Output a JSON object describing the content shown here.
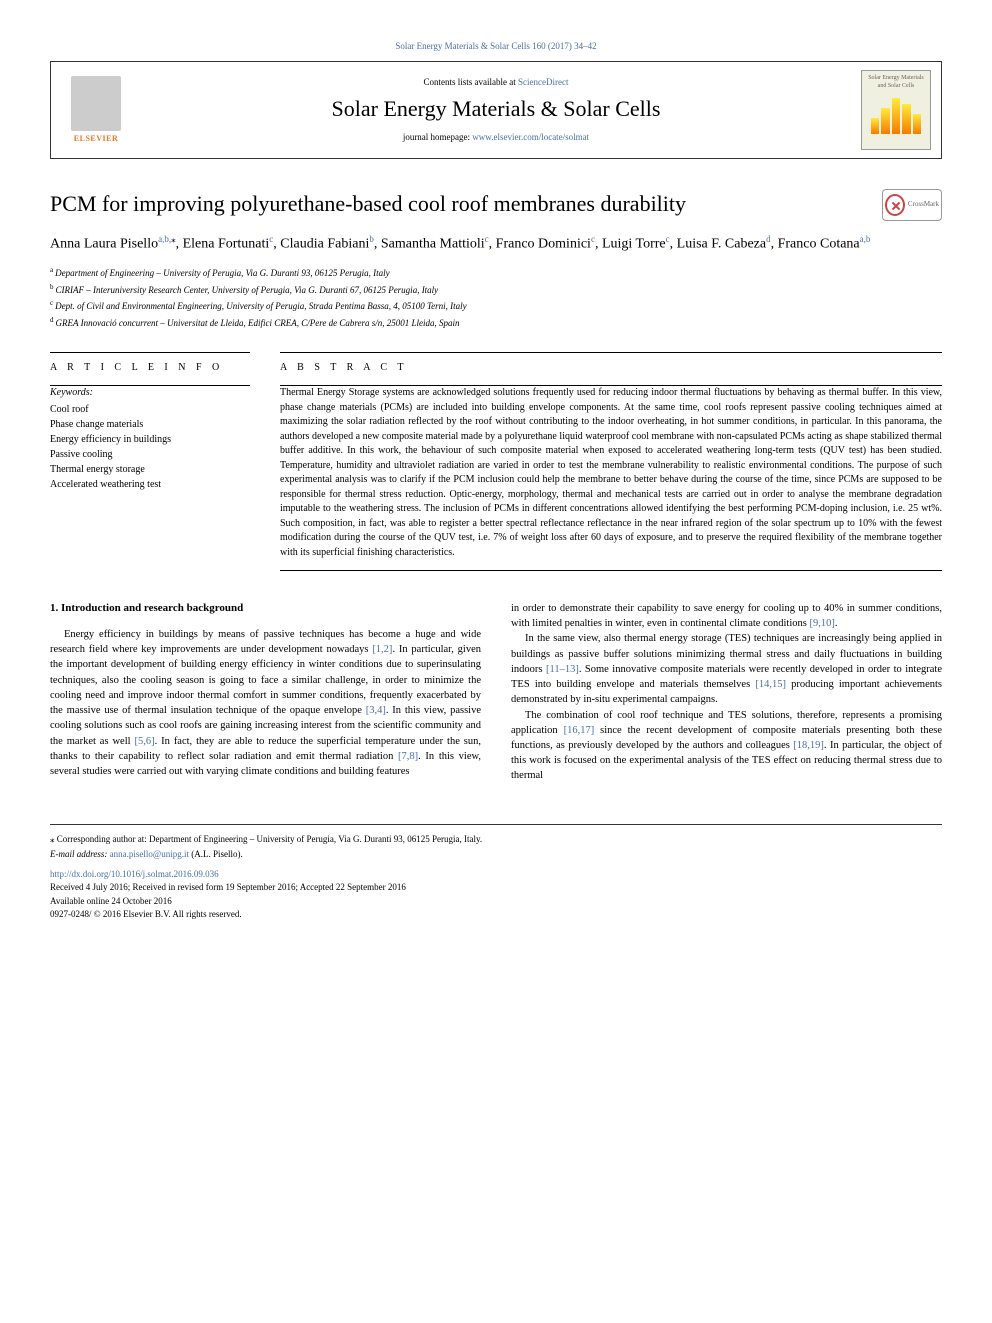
{
  "top_header": "Solar Energy Materials & Solar Cells 160 (2017) 34–42",
  "header": {
    "contents_prefix": "Contents lists available at ",
    "contents_link": "ScienceDirect",
    "journal_name": "Solar Energy Materials & Solar Cells",
    "homepage_prefix": "journal homepage: ",
    "homepage_link": "www.elsevier.com/locate/solmat",
    "elsevier_label": "ELSEVIER",
    "cover_text": "Solar Energy Materials and Solar Cells"
  },
  "crossmark_label": "CrossMark",
  "title": "PCM for improving polyurethane-based cool roof membranes durability",
  "authors": [
    {
      "name": "Anna Laura Pisello",
      "sup": "a,b,",
      "star": "⁎"
    },
    {
      "name": "Elena Fortunati",
      "sup": "c"
    },
    {
      "name": "Claudia Fabiani",
      "sup": "b"
    },
    {
      "name": "Samantha Mattioli",
      "sup": "c"
    },
    {
      "name": "Franco Dominici",
      "sup": "c"
    },
    {
      "name": "Luigi Torre",
      "sup": "c"
    },
    {
      "name": "Luisa F. Cabeza",
      "sup": "d"
    },
    {
      "name": "Franco Cotana",
      "sup": "a,b"
    }
  ],
  "affiliations": [
    {
      "label": "a",
      "text": "Department of Engineering – University of Perugia, Via G. Duranti 93, 06125 Perugia, Italy"
    },
    {
      "label": "b",
      "text": "CIRIAF – Interuniversity Research Center, University of Perugia, Via G. Duranti 67, 06125 Perugia, Italy"
    },
    {
      "label": "c",
      "text": "Dept. of Civil and Environmental Engineering, University of Perugia, Strada Pentima Bassa, 4, 05100 Terni, Italy"
    },
    {
      "label": "d",
      "text": "GREA Innovació concurrent – Universitat de Lleida, Edifici CREA, C/Pere de Cabrera s/n, 25001 Lleida, Spain"
    }
  ],
  "article_info_head": "A R T I C L E  I N F O",
  "keywords_label": "Keywords:",
  "keywords": "Cool roof\nPhase change materials\nEnergy efficiency in buildings\nPassive cooling\nThermal energy storage\nAccelerated weathering test",
  "abstract_head": "A B S T R A C T",
  "abstract_text": "Thermal Energy Storage systems are acknowledged solutions frequently used for reducing indoor thermal fluctuations by behaving as thermal buffer. In this view, phase change materials (PCMs) are included into building envelope components. At the same time, cool roofs represent passive cooling techniques aimed at maximizing the solar radiation reflected by the roof without contributing to the indoor overheating, in hot summer conditions, in particular. In this panorama, the authors developed a new composite material made by a polyurethane liquid waterproof cool membrane with non-capsulated PCMs acting as shape stabilized thermal buffer additive. In this work, the behaviour of such composite material when exposed to accelerated weathering long-term tests (QUV test) has been studied. Temperature, humidity and ultraviolet radiation are varied in order to test the membrane vulnerability to realistic environmental conditions. The purpose of such experimental analysis was to clarify if the PCM inclusion could help the membrane to better behave during the course of the time, since PCMs are supposed to be responsible for thermal stress reduction. Optic-energy, morphology, thermal and mechanical tests are carried out in order to analyse the membrane degradation imputable to the weathering stress. The inclusion of PCMs in different concentrations allowed identifying the best performing PCM-doping inclusion, i.e. 25 wt%. Such composition, in fact, was able to register a better spectral reflectance reflectance in the near infrared region of the solar spectrum up to 10% with the fewest modification during the course of the QUV test, i.e. 7% of weight loss after 60 days of exposure, and to preserve the required flexibility of the membrane together with its superficial finishing characteristics.",
  "body": {
    "heading": "1. Introduction and research background",
    "left_para": "Energy efficiency in buildings by means of passive techniques has become a huge and wide research field where key improvements are under development nowadays [1,2]. In particular, given the important development of building energy efficiency in winter conditions due to superinsulating techniques, also the cooling season is going to face a similar challenge, in order to minimize the cooling need and improve indoor thermal comfort in summer conditions, frequently exacerbated by the massive use of thermal insulation technique of the opaque envelope [3,4]. In this view, passive cooling solutions such as cool roofs are gaining increasing interest from the scientific community and the market as well [5,6]. In fact, they are able to reduce the superficial temperature under the sun, thanks to their capability to reflect solar radiation and emit thermal radiation [7,8]. In this view, several studies were carried out with varying climate conditions and building features",
    "right_p1": "in order to demonstrate their capability to save energy for cooling up to 40% in summer conditions, with limited penalties in winter, even in continental climate conditions [9,10].",
    "right_p2": "In the same view, also thermal energy storage (TES) techniques are increasingly being applied in buildings as passive buffer solutions minimizing thermal stress and daily fluctuations in building indoors [11–13]. Some innovative composite materials were recently developed in order to integrate TES into building envelope and materials themselves [14,15] producing important achievements demonstrated by in-situ experimental campaigns.",
    "right_p3": "The combination of cool roof technique and TES solutions, therefore, represents a promising application [16,17] since the recent development of composite materials presenting both these functions, as previously developed by the authors and colleagues [18,19]. In particular, the object of this work is focused on the experimental analysis of the TES effect on reducing thermal stress due to thermal"
  },
  "refs": {
    "r12": "[1,2]",
    "r34": "[3,4]",
    "r56": "[5,6]",
    "r78": "[7,8]",
    "r910": "[9,10]",
    "r1113": "[11–13]",
    "r1415": "[14,15]",
    "r1617": "[16,17]",
    "r1819": "[18,19]"
  },
  "footer": {
    "corresponding": "⁎ Corresponding author at: Department of Engineering – University of Perugia, Via G. Duranti 93, 06125 Perugia, Italy.",
    "email_label": "E-mail address: ",
    "email": "anna.pisello@unipg.it",
    "email_suffix": " (A.L. Pisello).",
    "doi": "http://dx.doi.org/10.1016/j.solmat.2016.09.036",
    "received": "Received 4 July 2016; Received in revised form 19 September 2016; Accepted 22 September 2016",
    "available": "Available online 24 October 2016",
    "copyright": "0927-0248/ © 2016 Elsevier B.V. All rights reserved."
  },
  "colors": {
    "link": "#4a6fa5",
    "accent": "#e8762a"
  }
}
